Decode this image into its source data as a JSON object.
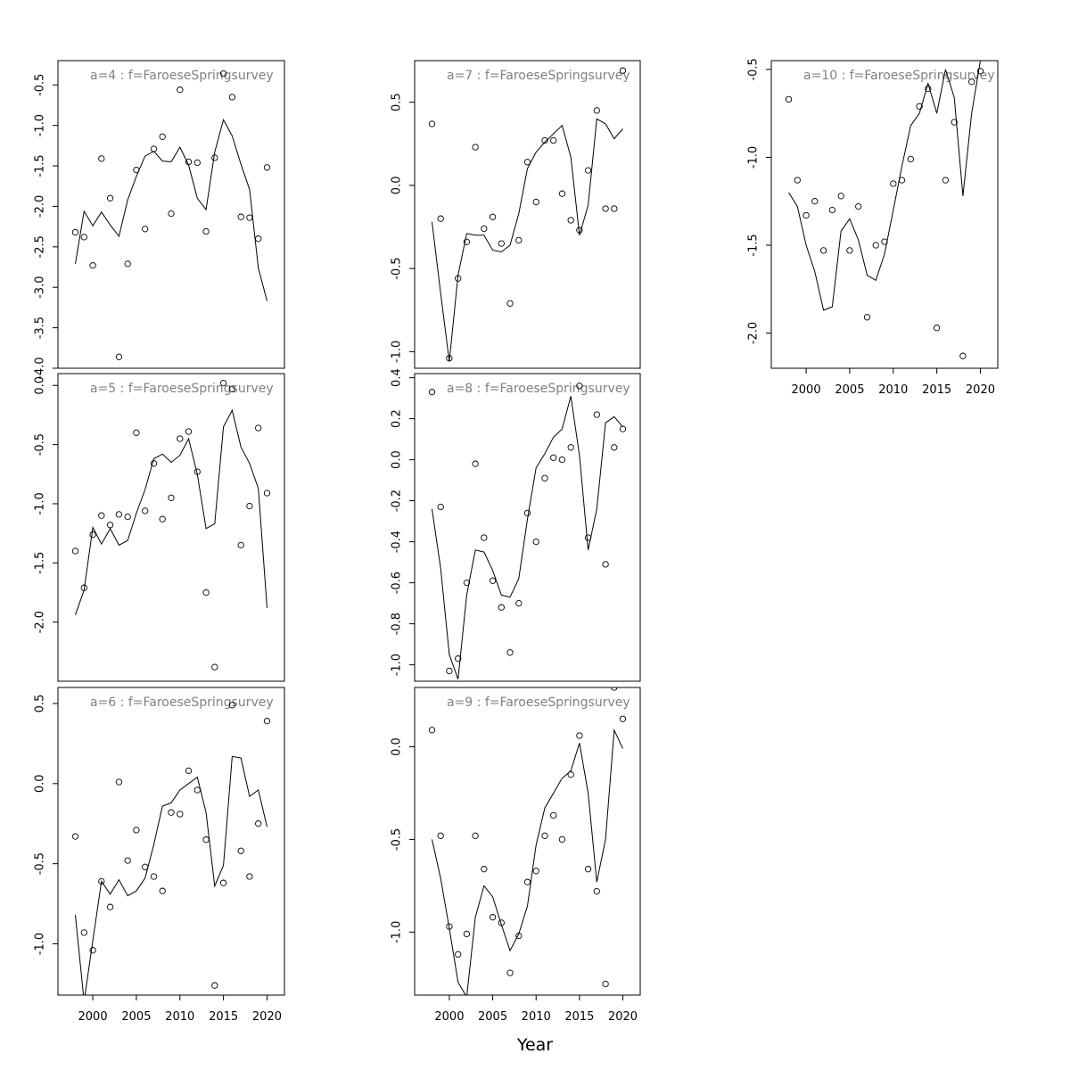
{
  "xlabel": "Year",
  "chart_data": [
    {
      "type": "scatter",
      "title": "a=4  :  f=FaroeseSpringsurvey",
      "xlim": [
        1996,
        2022
      ],
      "ylim": [
        -4.0,
        -0.2
      ],
      "yticks": [
        -4.0,
        -3.5,
        -3.0,
        -2.5,
        -2.0,
        -1.5,
        -1.0,
        -0.5
      ],
      "ytick_labels": [
        "-4.0",
        "-3.5",
        "-3.0",
        "-2.5",
        "-2.0",
        "-1.5",
        "-1.0",
        "-0.5"
      ],
      "xticks": [],
      "xtick_labels": [],
      "x": [
        1998,
        1999,
        2000,
        2001,
        2002,
        2003,
        2004,
        2005,
        2006,
        2007,
        2008,
        2009,
        2010,
        2011,
        2012,
        2013,
        2014,
        2015,
        2016,
        2017,
        2018,
        2019,
        2020
      ],
      "observed": [
        -2.32,
        -2.38,
        -2.73,
        -1.41,
        -1.9,
        -3.86,
        -2.71,
        -1.55,
        -2.28,
        -1.29,
        -1.14,
        -2.09,
        -0.56,
        -1.45,
        -1.46,
        -2.31,
        -1.4,
        -0.36,
        -0.65,
        -2.13,
        -2.14,
        -2.4,
        -1.52
      ],
      "fitted": [
        -2.71,
        -2.06,
        -2.24,
        -2.07,
        -2.23,
        -2.37,
        -1.92,
        -1.63,
        -1.38,
        -1.32,
        -1.44,
        -1.45,
        -1.27,
        -1.49,
        -1.9,
        -2.04,
        -1.33,
        -0.93,
        -1.13,
        -1.48,
        -1.79,
        -2.76,
        -3.17
      ]
    },
    {
      "type": "scatter",
      "title": "a=5  :  f=FaroeseSpringsurvey",
      "xlim": [
        1996,
        2022
      ],
      "ylim": [
        -2.5,
        0.1
      ],
      "yticks": [
        -2.0,
        -1.5,
        -1.0,
        -0.5,
        0.0
      ],
      "ytick_labels": [
        "-2.0",
        "-1.5",
        "-1.0",
        "-0.5",
        "0.0"
      ],
      "xticks": [],
      "xtick_labels": [],
      "x": [
        1998,
        1999,
        2000,
        2001,
        2002,
        2003,
        2004,
        2005,
        2006,
        2007,
        2008,
        2009,
        2010,
        2011,
        2012,
        2013,
        2014,
        2015,
        2016,
        2017,
        2018,
        2019,
        2020
      ],
      "observed": [
        -1.4,
        -1.71,
        -1.26,
        -1.1,
        -1.18,
        -1.09,
        -1.11,
        -0.4,
        -1.06,
        -0.66,
        -1.13,
        -0.95,
        -0.45,
        -0.39,
        -0.73,
        -1.75,
        -2.38,
        0.02,
        -0.03,
        -1.35,
        -1.02,
        -0.36,
        -0.91
      ],
      "fitted": [
        -1.94,
        -1.73,
        -1.2,
        -1.34,
        -1.21,
        -1.35,
        -1.31,
        -1.08,
        -0.88,
        -0.62,
        -0.58,
        -0.65,
        -0.59,
        -0.45,
        -0.75,
        -1.21,
        -1.17,
        -0.35,
        -0.21,
        -0.52,
        -0.66,
        -0.87,
        -1.88
      ]
    },
    {
      "type": "scatter",
      "title": "a=6  :  f=FaroeseSpringsurvey",
      "xlim": [
        1996,
        2022
      ],
      "ylim": [
        -1.32,
        0.6
      ],
      "yticks": [
        -1.0,
        -0.5,
        0.0,
        0.5
      ],
      "ytick_labels": [
        "-1.0",
        "-0.5",
        "0.0",
        "0.5"
      ],
      "xticks": [
        2000,
        2005,
        2010,
        2015,
        2020
      ],
      "xtick_labels": [
        "2000",
        "2005",
        "2010",
        "2015",
        "2020"
      ],
      "x": [
        1998,
        1999,
        2000,
        2001,
        2002,
        2003,
        2004,
        2005,
        2006,
        2007,
        2008,
        2009,
        2010,
        2011,
        2012,
        2013,
        2014,
        2015,
        2016,
        2017,
        2018,
        2019,
        2020
      ],
      "observed": [
        -0.33,
        -0.93,
        -1.04,
        -0.61,
        -0.77,
        0.01,
        -0.48,
        -0.29,
        -0.52,
        -0.58,
        -0.67,
        -0.18,
        -0.19,
        0.08,
        -0.04,
        -0.35,
        -1.26,
        -0.62,
        0.49,
        -0.42,
        -0.58,
        -0.25,
        0.39
      ],
      "fitted": [
        -0.82,
        -1.36,
        -0.98,
        -0.61,
        -0.69,
        -0.6,
        -0.7,
        -0.67,
        -0.59,
        -0.38,
        -0.14,
        -0.12,
        -0.04,
        0.0,
        0.04,
        -0.18,
        -0.64,
        -0.51,
        0.17,
        0.16,
        -0.08,
        -0.04,
        -0.27
      ]
    },
    {
      "type": "scatter",
      "title": "a=7  :  f=FaroeseSpringsurvey",
      "xlim": [
        1996,
        2022
      ],
      "ylim": [
        -1.1,
        0.75
      ],
      "yticks": [
        -1.0,
        -0.5,
        0.0,
        0.5
      ],
      "ytick_labels": [
        "-1.0",
        "-0.5",
        "0.0",
        "0.5"
      ],
      "xticks": [],
      "xtick_labels": [],
      "x": [
        1998,
        1999,
        2000,
        2001,
        2002,
        2003,
        2004,
        2005,
        2006,
        2007,
        2008,
        2009,
        2010,
        2011,
        2012,
        2013,
        2014,
        2015,
        2016,
        2017,
        2018,
        2019,
        2020
      ],
      "observed": [
        0.37,
        -0.2,
        -1.04,
        -0.56,
        -0.34,
        0.23,
        -0.26,
        -0.19,
        -0.35,
        -0.71,
        -0.33,
        0.14,
        -0.1,
        0.27,
        0.27,
        -0.05,
        -0.21,
        -0.27,
        0.09,
        0.45,
        -0.14,
        -0.14,
        0.69
      ],
      "fitted": [
        -0.22,
        -0.65,
        -1.06,
        -0.54,
        -0.29,
        -0.3,
        -0.3,
        -0.39,
        -0.4,
        -0.36,
        -0.17,
        0.1,
        0.2,
        0.26,
        0.31,
        0.36,
        0.17,
        -0.3,
        -0.12,
        0.4,
        0.37,
        0.28,
        0.34
      ]
    },
    {
      "type": "scatter",
      "title": "a=8  :  f=FaroeseSpringsurvey",
      "xlim": [
        1996,
        2022
      ],
      "ylim": [
        -1.08,
        0.42
      ],
      "yticks": [
        -1.0,
        -0.8,
        -0.6,
        -0.4,
        -0.2,
        0.0,
        0.2,
        0.4
      ],
      "ytick_labels": [
        "-1.0",
        "-0.8",
        "-0.6",
        "-0.4",
        "-0.2",
        "0.0",
        "0.2",
        "0.4"
      ],
      "xticks": [],
      "xtick_labels": [],
      "x": [
        1998,
        1999,
        2000,
        2001,
        2002,
        2003,
        2004,
        2005,
        2006,
        2007,
        2008,
        2009,
        2010,
        2011,
        2012,
        2013,
        2014,
        2015,
        2016,
        2017,
        2018,
        2019,
        2020
      ],
      "observed": [
        0.33,
        -0.23,
        -1.03,
        -0.97,
        -0.6,
        -0.02,
        -0.38,
        -0.59,
        -0.72,
        -0.94,
        -0.7,
        -0.26,
        -0.4,
        -0.09,
        0.01,
        0.0,
        0.06,
        0.36,
        -0.38,
        0.22,
        -0.51,
        0.06,
        0.15
      ],
      "fitted": [
        -0.24,
        -0.53,
        -0.95,
        -1.07,
        -0.66,
        -0.44,
        -0.45,
        -0.54,
        -0.66,
        -0.67,
        -0.58,
        -0.29,
        -0.04,
        0.03,
        0.11,
        0.15,
        0.31,
        0.02,
        -0.44,
        -0.24,
        0.18,
        0.21,
        0.16
      ]
    },
    {
      "type": "scatter",
      "title": "a=9  :  f=FaroeseSpringsurvey",
      "xlim": [
        1996,
        2022
      ],
      "ylim": [
        -1.34,
        0.32
      ],
      "yticks": [
        -1.0,
        -0.5,
        0.0
      ],
      "ytick_labels": [
        "-1.0",
        "-0.5",
        "0.0"
      ],
      "xticks": [
        2000,
        2005,
        2010,
        2015,
        2020
      ],
      "xtick_labels": [
        "2000",
        "2005",
        "2010",
        "2015",
        "2020"
      ],
      "x": [
        1998,
        1999,
        2000,
        2001,
        2002,
        2003,
        2004,
        2005,
        2006,
        2007,
        2008,
        2009,
        2010,
        2011,
        2012,
        2013,
        2014,
        2015,
        2016,
        2017,
        2018,
        2019,
        2020
      ],
      "observed": [
        0.09,
        -0.48,
        -0.97,
        -1.12,
        -1.01,
        -0.48,
        -0.66,
        -0.92,
        -0.95,
        -1.22,
        -1.02,
        -0.73,
        -0.67,
        -0.48,
        -0.37,
        -0.5,
        -0.15,
        0.06,
        -0.66,
        -0.78,
        -1.28,
        0.32,
        0.15
      ],
      "fitted": [
        -0.5,
        -0.71,
        -0.98,
        -1.27,
        -1.35,
        -0.92,
        -0.75,
        -0.81,
        -0.96,
        -1.1,
        -1.01,
        -0.86,
        -0.53,
        -0.33,
        -0.25,
        -0.17,
        -0.13,
        0.02,
        -0.25,
        -0.73,
        -0.5,
        0.09,
        -0.01
      ]
    },
    {
      "type": "scatter",
      "title": "a=10  :  f=FaroeseSpringsurvey",
      "xlim": [
        1996,
        2022
      ],
      "ylim": [
        -2.2,
        -0.45
      ],
      "yticks": [
        -2.0,
        -1.5,
        -1.0,
        -0.5
      ],
      "ytick_labels": [
        "-2.0",
        "-1.5",
        "-1.0",
        "-0.5"
      ],
      "xticks": [
        2000,
        2005,
        2010,
        2015,
        2020
      ],
      "xtick_labels": [
        "2000",
        "2005",
        "2010",
        "2015",
        "2020"
      ],
      "x": [
        1998,
        1999,
        2000,
        2001,
        2002,
        2003,
        2004,
        2005,
        2006,
        2007,
        2008,
        2009,
        2010,
        2011,
        2012,
        2013,
        2014,
        2015,
        2016,
        2017,
        2018,
        2019,
        2020
      ],
      "observed": [
        -0.67,
        -1.13,
        -1.33,
        -1.25,
        -1.53,
        -1.3,
        -1.22,
        -1.53,
        -1.28,
        -1.91,
        -1.5,
        -1.48,
        -1.15,
        -1.13,
        -1.01,
        -0.71,
        -0.61,
        -1.97,
        -1.13,
        -0.8,
        -2.13,
        -0.57,
        -0.51
      ],
      "fitted": [
        -1.2,
        -1.28,
        -1.5,
        -1.65,
        -1.87,
        -1.85,
        -1.42,
        -1.35,
        -1.47,
        -1.67,
        -1.7,
        -1.55,
        -1.3,
        -1.05,
        -0.82,
        -0.75,
        -0.58,
        -0.75,
        -0.5,
        -0.66,
        -1.22,
        -0.75,
        -0.45
      ]
    }
  ]
}
